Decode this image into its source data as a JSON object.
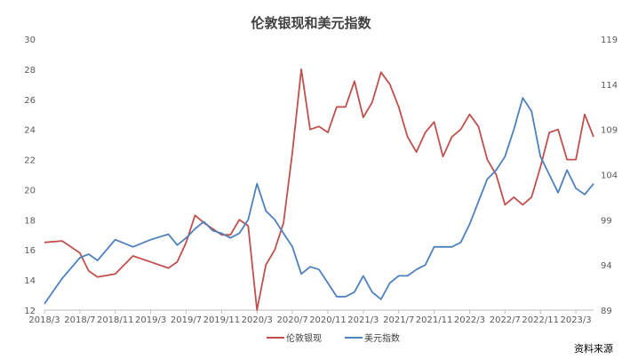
{
  "chart_data": {
    "type": "line",
    "title": "伦敦银现和美元指数",
    "source_note": "资料来源",
    "x_ticks": [
      "2018/3",
      "2018/7",
      "2018/11",
      "2019/3",
      "2019/7",
      "2019/11",
      "2020/3",
      "2020/7",
      "2020/11",
      "2021/3",
      "2021/7",
      "2021/11",
      "2022/3",
      "2022/7",
      "2022/11",
      "2023/3"
    ],
    "x_range": [
      "2018/3",
      "2023/5"
    ],
    "y_left": {
      "ylim": [
        12,
        30
      ],
      "ticks": [
        12,
        14,
        16,
        18,
        20,
        22,
        24,
        26,
        28,
        30
      ]
    },
    "y_right": {
      "ylim": [
        89,
        119
      ],
      "ticks": [
        89,
        94,
        99,
        104,
        109,
        114,
        119
      ]
    },
    "grid": false,
    "legend_position": "bottom",
    "series": [
      {
        "name": "伦敦银现",
        "axis": "left",
        "color": "#C0504D",
        "x": [
          "2018/3",
          "2018/5",
          "2018/7",
          "2018/8",
          "2018/9",
          "2018/11",
          "2019/1",
          "2019/3",
          "2019/5",
          "2019/6",
          "2019/7",
          "2019/8",
          "2019/9",
          "2019/10",
          "2019/11",
          "2019/12",
          "2020/1",
          "2020/2",
          "2020/3",
          "2020/4",
          "2020/5",
          "2020/6",
          "2020/7",
          "2020/8",
          "2020/9",
          "2020/10",
          "2020/11",
          "2020/12",
          "2021/1",
          "2021/2",
          "2021/3",
          "2021/4",
          "2021/5",
          "2021/6",
          "2021/7",
          "2021/8",
          "2021/9",
          "2021/10",
          "2021/11",
          "2021/12",
          "2022/1",
          "2022/2",
          "2022/3",
          "2022/4",
          "2022/5",
          "2022/6",
          "2022/7",
          "2022/8",
          "2022/9",
          "2022/10",
          "2022/11",
          "2022/12",
          "2023/1",
          "2023/2",
          "2023/3",
          "2023/4",
          "2023/5"
        ],
        "values": [
          16.5,
          16.6,
          15.8,
          14.6,
          14.2,
          14.4,
          15.6,
          15.2,
          14.8,
          15.2,
          16.5,
          18.3,
          17.8,
          17.4,
          17.0,
          17.0,
          18.0,
          17.6,
          12.0,
          15.0,
          16.0,
          17.8,
          22.5,
          28.0,
          24.0,
          24.2,
          23.8,
          25.5,
          25.5,
          27.2,
          24.8,
          25.8,
          27.8,
          27.0,
          25.5,
          23.5,
          22.5,
          23.8,
          24.5,
          22.2,
          23.5,
          24.0,
          25.0,
          24.2,
          22.0,
          21.0,
          19.0,
          19.5,
          19.0,
          19.5,
          21.5,
          23.8,
          24.0,
          22.0,
          22.0,
          25.0,
          23.5
        ]
      },
      {
        "name": "美元指数",
        "axis": "right",
        "color": "#4F81BD",
        "x": [
          "2018/3",
          "2018/5",
          "2018/7",
          "2018/8",
          "2018/9",
          "2018/11",
          "2019/1",
          "2019/3",
          "2019/5",
          "2019/6",
          "2019/7",
          "2019/8",
          "2019/9",
          "2019/10",
          "2019/11",
          "2019/12",
          "2020/1",
          "2020/2",
          "2020/3",
          "2020/4",
          "2020/5",
          "2020/6",
          "2020/7",
          "2020/8",
          "2020/9",
          "2020/10",
          "2020/11",
          "2020/12",
          "2021/1",
          "2021/2",
          "2021/3",
          "2021/4",
          "2021/5",
          "2021/6",
          "2021/7",
          "2021/8",
          "2021/9",
          "2021/10",
          "2021/11",
          "2021/12",
          "2022/1",
          "2022/2",
          "2022/3",
          "2022/4",
          "2022/5",
          "2022/6",
          "2022/7",
          "2022/8",
          "2022/9",
          "2022/10",
          "2022/11",
          "2022/12",
          "2023/1",
          "2023/2",
          "2023/3",
          "2023/4",
          "2023/5"
        ],
        "values": [
          89.7,
          92.5,
          94.8,
          95.2,
          94.5,
          96.8,
          96.0,
          96.8,
          97.4,
          96.2,
          97.0,
          98.0,
          98.8,
          97.8,
          97.5,
          97.0,
          97.5,
          99.0,
          103.0,
          100.0,
          99.0,
          97.5,
          96.0,
          93.0,
          93.8,
          93.5,
          92.0,
          90.5,
          90.5,
          91.0,
          92.8,
          91.0,
          90.2,
          92.0,
          92.8,
          92.8,
          93.5,
          94.0,
          96.0,
          96.0,
          96.0,
          96.5,
          98.5,
          101.0,
          103.5,
          104.5,
          106.0,
          109.0,
          112.5,
          111.0,
          106.0,
          104.0,
          102.0,
          104.5,
          102.5,
          101.8,
          103.0
        ]
      }
    ]
  }
}
